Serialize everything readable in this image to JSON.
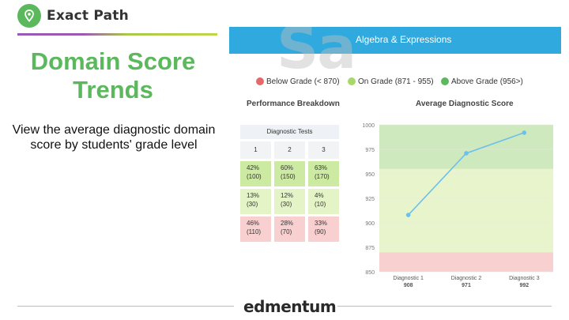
{
  "logo": {
    "icon": "map-pin-icon",
    "text": "Exact Path"
  },
  "slide": {
    "title": "Domain Score Trends",
    "subtitle": "View the average diagnostic domain score by students' grade level"
  },
  "panel": {
    "header_title": "Algebra & Expressions",
    "watermark": "Sa",
    "legend": [
      {
        "label": "Below Grade (< 870)",
        "color": "#e46a6a"
      },
      {
        "label": "On Grade (871 - 955)",
        "color": "#a8d86a"
      },
      {
        "label": "Above Grade (956>)",
        "color": "#5cb85c"
      }
    ],
    "performance_label": "Performance Breakdown",
    "chart_label": "Average Diagnostic Score"
  },
  "table": {
    "header": "Diagnostic Tests",
    "columns": [
      "1",
      "2",
      "3"
    ],
    "rows": [
      {
        "band": "above",
        "cells": [
          {
            "pct": "42%",
            "count": "(100)"
          },
          {
            "pct": "60%",
            "count": "(150)"
          },
          {
            "pct": "63%",
            "count": "(170)"
          }
        ]
      },
      {
        "band": "on",
        "cells": [
          {
            "pct": "13%",
            "count": "(30)"
          },
          {
            "pct": "12%",
            "count": "(30)"
          },
          {
            "pct": "4%",
            "count": "(10)"
          }
        ]
      },
      {
        "band": "below",
        "cells": [
          {
            "pct": "46%",
            "count": "(110)"
          },
          {
            "pct": "28%",
            "count": "(70)"
          },
          {
            "pct": "33%",
            "count": "(90)"
          }
        ]
      }
    ]
  },
  "chart_data": {
    "type": "line",
    "title": "Average Diagnostic Score",
    "categories": [
      "Diagnostic 1",
      "Diagnostic 2",
      "Diagnostic 3"
    ],
    "category_values": [
      "908",
      "971",
      "992"
    ],
    "series": [
      {
        "values": [
          908,
          971,
          992
        ]
      }
    ],
    "y_ticks": [
      "1000",
      "975",
      "950",
      "925",
      "900",
      "875",
      "850"
    ],
    "ylim": [
      850,
      1000
    ],
    "bands": [
      {
        "from": 850,
        "to": 870,
        "color": "#f8d0d0"
      },
      {
        "from": 870,
        "to": 955,
        "color": "#e8f5cc"
      },
      {
        "from": 955,
        "to": 1000,
        "color": "#cfe9bf"
      }
    ],
    "line_color": "#6cc0ea"
  },
  "footer": {
    "brand": "edmentum"
  }
}
